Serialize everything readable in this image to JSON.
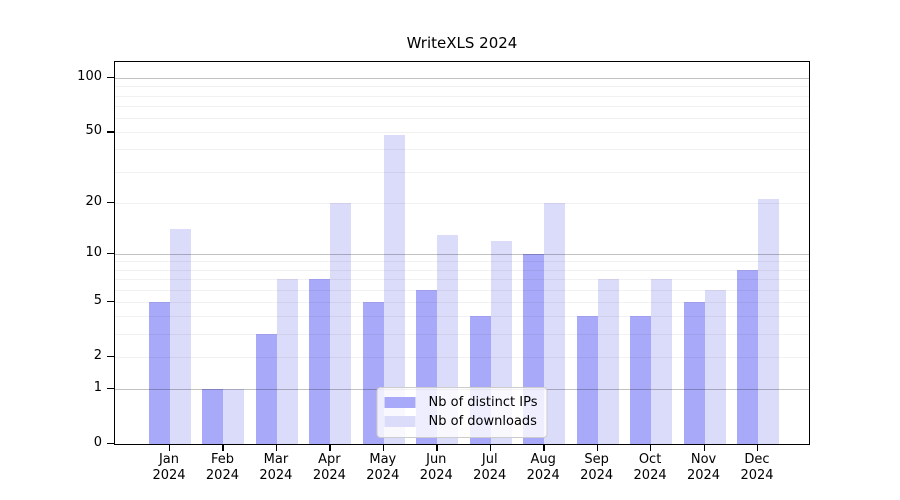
{
  "title": "WriteXLS 2024",
  "colors": {
    "distinct_ips_bar": "#a9a9fa",
    "downloads_bar": "#dbdbfa",
    "frame": "#000000",
    "legend_border": "#cccccc"
  },
  "legend": {
    "items": [
      {
        "label": "Nb of distinct IPs"
      },
      {
        "label": "Nb of downloads"
      }
    ]
  },
  "chart_data": {
    "type": "bar",
    "title": "WriteXLS 2024",
    "x_labels": [
      {
        "month": "Jan",
        "year": "2024"
      },
      {
        "month": "Feb",
        "year": "2024"
      },
      {
        "month": "Mar",
        "year": "2024"
      },
      {
        "month": "Apr",
        "year": "2024"
      },
      {
        "month": "May",
        "year": "2024"
      },
      {
        "month": "Jun",
        "year": "2024"
      },
      {
        "month": "Jul",
        "year": "2024"
      },
      {
        "month": "Aug",
        "year": "2024"
      },
      {
        "month": "Sep",
        "year": "2024"
      },
      {
        "month": "Oct",
        "year": "2024"
      },
      {
        "month": "Nov",
        "year": "2024"
      },
      {
        "month": "Dec",
        "year": "2024"
      }
    ],
    "series": [
      {
        "name": "Nb of distinct IPs",
        "key": "distinct-ips",
        "color": "#a9a9fa",
        "values": [
          5,
          1,
          3,
          7,
          5,
          6,
          4,
          10,
          4,
          4,
          5,
          8
        ]
      },
      {
        "name": "Nb of downloads",
        "key": "downloads",
        "color": "#dbdbfa",
        "values": [
          14,
          1,
          7,
          20,
          48,
          13,
          12,
          20,
          7,
          7,
          6,
          21
        ]
      }
    ],
    "yscale": "log1p",
    "ylim": [
      0,
      100
    ],
    "yticks": [
      0,
      1,
      2,
      5,
      10,
      20,
      50,
      100
    ],
    "major_gridlines": [
      1,
      10,
      100
    ],
    "minor_gridlines": [
      2,
      3,
      4,
      5,
      6,
      7,
      8,
      9,
      20,
      30,
      40,
      50,
      60,
      70,
      80,
      90
    ],
    "grid": true,
    "legend_position": "lower center"
  }
}
